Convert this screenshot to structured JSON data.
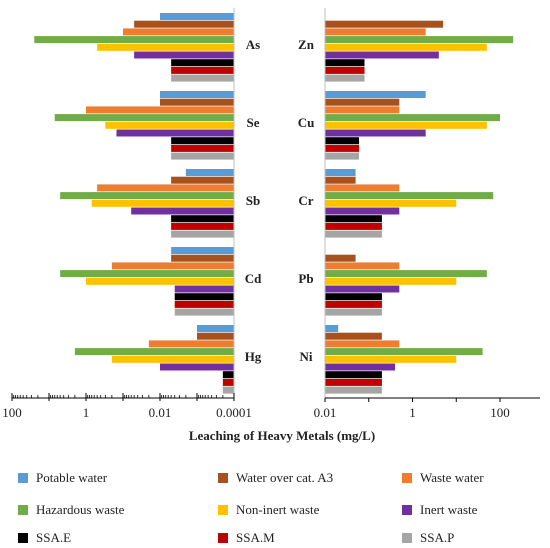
{
  "chart_data": {
    "type": "bar",
    "orientation": "horizontal",
    "xlabel": "Leaching of Heavy Metals (mg/L)",
    "left_axis_ticks": [
      "100",
      "1",
      "0.01",
      "0.0001"
    ],
    "right_axis_ticks": [
      "0.01",
      "1",
      "100"
    ],
    "left_xlim": [
      100,
      0.0001
    ],
    "right_xlim": [
      0.01,
      200
    ],
    "scale": "log",
    "grid": false,
    "legend_position": "bottom",
    "series": [
      {
        "name": "Potable water",
        "color": "#5b9bd5"
      },
      {
        "name": "Water over cat. A3",
        "color": "#a5521e"
      },
      {
        "name": "Waste water",
        "color": "#ed7d31"
      },
      {
        "name": "Hazardous waste",
        "color": "#70ad47"
      },
      {
        "name": "Non-inert waste",
        "color": "#ffc000"
      },
      {
        "name": "Inert waste",
        "color": "#7030a0"
      },
      {
        "name": "SSA.E",
        "color": "#000000"
      },
      {
        "name": "SSA.M",
        "color": "#c00000"
      },
      {
        "name": "SSA.P",
        "color": "#a5a5a5"
      }
    ],
    "left_panel": {
      "categories": [
        "As",
        "Se",
        "Sb",
        "Cd",
        "Hg"
      ],
      "values": [
        [
          0.01,
          0.05,
          0.1,
          25,
          0.5,
          0.05,
          0.005,
          0.005,
          0.005
        ],
        [
          0.01,
          0.01,
          1,
          7,
          0.3,
          0.15,
          0.005,
          0.005,
          0.005
        ],
        [
          0.002,
          0.005,
          0.5,
          5,
          0.7,
          0.06,
          0.005,
          0.005,
          0.005
        ],
        [
          0.005,
          0.005,
          0.2,
          5,
          1,
          0.004,
          0.004,
          0.004,
          0.004
        ],
        [
          0.001,
          0.001,
          0.02,
          2,
          0.2,
          0.01,
          0.0002,
          0.0002,
          0.0002
        ]
      ]
    },
    "right_panel": {
      "categories": [
        "Zn",
        "Cu",
        "Cr",
        "Pb",
        "Ni"
      ],
      "values": [
        [
          null,
          5,
          2,
          200,
          50,
          4,
          0.08,
          0.08,
          0.08
        ],
        [
          2,
          0.5,
          0.5,
          100,
          50,
          2,
          0.06,
          0.06,
          0.06
        ],
        [
          0.05,
          0.05,
          0.5,
          70,
          10,
          0.5,
          0.2,
          0.2,
          0.2
        ],
        [
          null,
          0.05,
          0.5,
          50,
          10,
          0.5,
          0.2,
          0.2,
          0.2
        ],
        [
          0.02,
          0.2,
          0.5,
          40,
          10,
          0.4,
          0.2,
          0.2,
          0.2
        ]
      ]
    }
  }
}
